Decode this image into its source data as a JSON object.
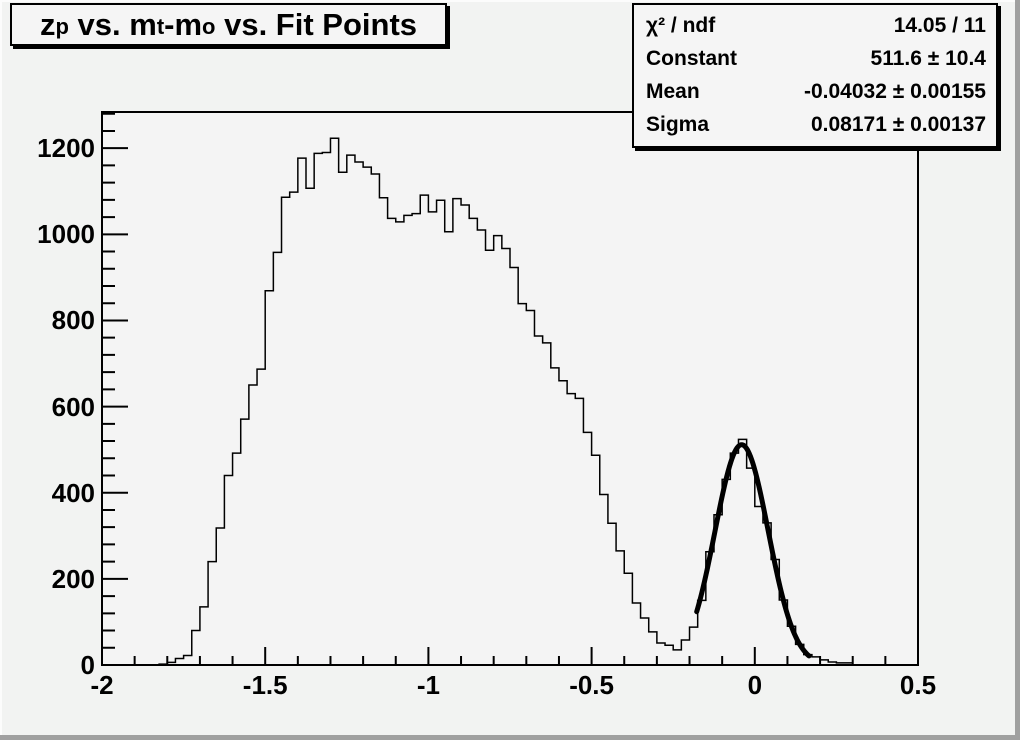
{
  "title": {
    "seg1": "z",
    "sub1": "p",
    "seg2": " vs. m",
    "sub2": "t",
    "seg3": "-m",
    "sub3": "o",
    "seg4": " vs. Fit Points"
  },
  "stats": {
    "rows": [
      {
        "label": "χ² / ndf",
        "value": "14.05 / 11"
      },
      {
        "label": "Constant",
        "value": "511.6 ± 10.4"
      },
      {
        "label": "Mean",
        "value": "-0.04032 ± 0.00155"
      },
      {
        "label": "Sigma",
        "value": "0.08171 ± 0.00137"
      }
    ]
  },
  "colors": {
    "canvas_bg": "#f2f3f2",
    "frame_bg": "#f4f4f4",
    "line": "#000000",
    "box_bg": "#f5f5f5",
    "bevel_shadow": "#a0a0a0",
    "bevel_highlight": "#fcfcfc"
  },
  "chart_data": {
    "type": "bar",
    "subtype": "histogram-step",
    "title": "z_p vs. m_t-m_o vs. Fit Points",
    "xlabel": "",
    "ylabel": "",
    "grid": false,
    "legend_position": "none",
    "xlim": [
      -2,
      0.5
    ],
    "ylim": [
      0,
      1284
    ],
    "bin_start": -2,
    "bin_width": 0.025,
    "n_bins": 100,
    "values": [
      0,
      0,
      0,
      0,
      0,
      0,
      0,
      2,
      6,
      15,
      22,
      80,
      135,
      240,
      318,
      440,
      492,
      571,
      650,
      687,
      869,
      958,
      1086,
      1098,
      1177,
      1107,
      1188,
      1190,
      1223,
      1144,
      1184,
      1168,
      1156,
      1140,
      1085,
      1037,
      1029,
      1044,
      1048,
      1091,
      1052,
      1079,
      1006,
      1083,
      1068,
      1037,
      1010,
      963,
      997,
      967,
      923,
      839,
      823,
      764,
      748,
      690,
      660,
      630,
      619,
      540,
      487,
      396,
      329,
      265,
      213,
      144,
      109,
      77,
      51,
      46,
      35,
      58,
      88,
      150,
      263,
      349,
      431,
      492,
      524,
      457,
      368,
      330,
      245,
      151,
      90,
      48,
      24,
      19,
      12,
      7,
      5,
      5,
      0,
      0,
      0,
      0,
      0,
      0,
      0,
      0
    ],
    "xticks": {
      "major": [
        -2,
        -1.5,
        -1,
        -0.5,
        0,
        0.5
      ],
      "labels": [
        "-2",
        "-1.5",
        "-1",
        "-0.5",
        "0",
        "0.5"
      ],
      "minor_step": 0.1
    },
    "yticks": {
      "major": [
        0,
        200,
        400,
        600,
        800,
        1000,
        1200
      ],
      "labels": [
        "0",
        "200",
        "400",
        "600",
        "800",
        "1000",
        "1200"
      ],
      "minor_step": 40
    },
    "fit": {
      "model": "gaussian",
      "chi2_ndf": "14.05 / 11",
      "constant": 511.6,
      "constant_err": 10.4,
      "mean": -0.04032,
      "mean_err": 0.00155,
      "sigma": 0.08171,
      "sigma_err": 0.00137,
      "draw_range": [
        -0.178,
        0.168
      ]
    }
  }
}
